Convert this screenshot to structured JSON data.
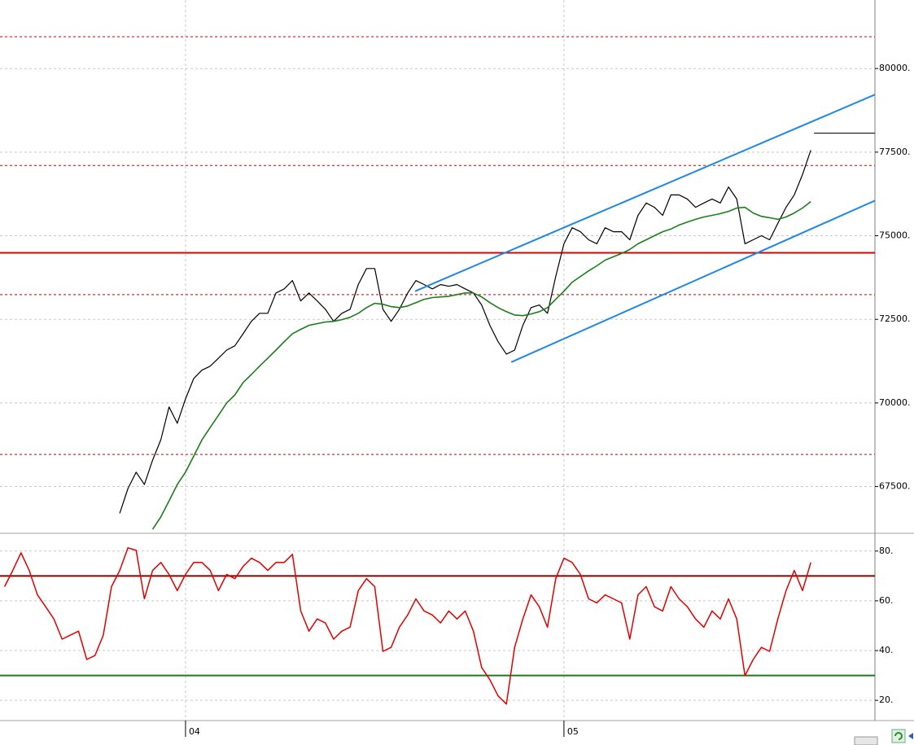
{
  "chart_data": [
    {
      "type": "line",
      "categories": [
        null,
        null,
        null,
        null,
        null,
        null,
        null,
        null,
        null,
        null,
        null,
        null,
        null,
        null,
        null,
        null,
        null,
        null,
        null,
        null,
        null,
        null,
        "04",
        null,
        null,
        null,
        null,
        null,
        null,
        null,
        null,
        null,
        null,
        null,
        null,
        null,
        null,
        null,
        null,
        null,
        null,
        null,
        null,
        null,
        null,
        null,
        null,
        null,
        null,
        null,
        null,
        null,
        null,
        null,
        null,
        null,
        null,
        null,
        null,
        null,
        null,
        null,
        null,
        null,
        null,
        null,
        null,
        null,
        "05",
        null,
        null,
        null,
        null,
        null,
        null,
        null,
        null,
        null,
        null,
        null,
        null,
        null,
        null,
        null,
        null,
        null,
        null,
        null,
        null,
        null,
        null,
        null,
        null,
        null,
        null,
        null,
        null,
        null,
        null
      ],
      "xlim": [
        -0.55,
        105.8
      ],
      "ylim": [
        66150,
        82050
      ],
      "yticks": [
        {
          "value": 67500,
          "label": "67500."
        },
        {
          "value": 70000,
          "label": "70000."
        },
        {
          "value": 72500,
          "label": "72500."
        },
        {
          "value": 75000,
          "label": "75000."
        },
        {
          "value": 77500,
          "label": "77500."
        },
        {
          "value": 80000,
          "label": "80000."
        }
      ],
      "grid": true,
      "series": [
        {
          "color": "#000000",
          "width": 1.2,
          "values": [
            null,
            null,
            null,
            null,
            null,
            null,
            null,
            null,
            null,
            null,
            null,
            null,
            null,
            null,
            66700,
            67440,
            67930,
            67560,
            68290,
            68900,
            69880,
            69390,
            70120,
            70730,
            70980,
            71100,
            71340,
            71580,
            71710,
            72070,
            72440,
            72680,
            72680,
            73290,
            73410,
            73660,
            73050,
            73290,
            73050,
            72800,
            72440,
            72680,
            72800,
            73540,
            74020,
            74020,
            72800,
            72440,
            72800,
            73290,
            73660,
            73540,
            73410,
            73540,
            73490,
            73540,
            73410,
            73290,
            72930,
            72320,
            71830,
            71460,
            71580,
            72320,
            72850,
            72930,
            72680,
            73780,
            74760,
            75240,
            75120,
            74880,
            74760,
            75240,
            75120,
            75120,
            74880,
            75610,
            75980,
            75850,
            75610,
            76220,
            76220,
            76100,
            75850,
            75980,
            76100,
            75980,
            76460,
            76100,
            74760,
            74880,
            75000,
            74880,
            75370,
            75850,
            76220,
            76830,
            77560
          ]
        },
        {
          "color": "#1a7f1a",
          "width": 1.6,
          "values": [
            null,
            null,
            null,
            null,
            null,
            null,
            null,
            null,
            null,
            null,
            null,
            null,
            null,
            null,
            null,
            null,
            null,
            null,
            66220,
            66590,
            67070,
            67560,
            67930,
            68410,
            68900,
            69270,
            69630,
            70000,
            70240,
            70610,
            70850,
            71100,
            71340,
            71580,
            71830,
            72070,
            72200,
            72320,
            72370,
            72420,
            72440,
            72490,
            72560,
            72680,
            72850,
            72980,
            72950,
            72880,
            72850,
            72900,
            73000,
            73100,
            73150,
            73170,
            73190,
            73240,
            73290,
            73290,
            73170,
            73000,
            72850,
            72730,
            72630,
            72610,
            72660,
            72730,
            72850,
            73100,
            73340,
            73610,
            73780,
            73950,
            74100,
            74270,
            74370,
            74470,
            74590,
            74760,
            74880,
            75000,
            75120,
            75200,
            75320,
            75410,
            75490,
            75560,
            75610,
            75660,
            75730,
            75830,
            75850,
            75680,
            75580,
            75540,
            75490,
            75560,
            75680,
            75830,
            76020
          ]
        }
      ],
      "levels": [
        {
          "value": 80950,
          "color": "#cc0000",
          "style": "dashed"
        },
        {
          "value": 77100,
          "color": "#cc0000",
          "style": "dashed"
        },
        {
          "value": 74490,
          "color": "#dd0000",
          "style": "solid"
        },
        {
          "value": 73240,
          "color": "#cc0000",
          "style": "dashed"
        },
        {
          "value": 68460,
          "color": "#cc0000",
          "style": "dashed"
        }
      ],
      "trend_lines": [
        {
          "color": "#1e88e5",
          "x": [
            49.9,
            105.8
          ],
          "y": [
            73340,
            79220
          ]
        },
        {
          "color": "#1e88e5",
          "x": [
            61.6,
            105.8
          ],
          "y": [
            71220,
            76050
          ]
        },
        {
          "color": "#000000",
          "x": [
            98.4,
            105.8
          ],
          "y": [
            78070,
            78070
          ]
        }
      ]
    },
    {
      "type": "line",
      "ylim": [
        12.2,
        86.8
      ],
      "yticks": [
        {
          "value": 20,
          "label": "20."
        },
        {
          "value": 40,
          "label": "40."
        },
        {
          "value": 60,
          "label": "60."
        },
        {
          "value": 80,
          "label": "80."
        }
      ],
      "grid": true,
      "series": [
        {
          "color": "#e00000",
          "width": 1.5,
          "values": [
            65.7,
            72.2,
            79.3,
            72.2,
            62.4,
            57.6,
            52.7,
            44.6,
            46.2,
            47.8,
            36.4,
            38,
            46.2,
            65.7,
            72.2,
            81.3,
            80.3,
            60.8,
            72.2,
            75.4,
            70.6,
            64.1,
            70.6,
            75.4,
            75.4,
            72.2,
            64.1,
            70.6,
            68.9,
            73.8,
            77.1,
            75.4,
            72.2,
            75.4,
            75.4,
            78.7,
            55.9,
            47.8,
            52.7,
            51.1,
            44.6,
            47.8,
            49.4,
            64.1,
            68.9,
            65.7,
            39.7,
            41.3,
            49.4,
            54.3,
            60.8,
            55.9,
            54.3,
            51.1,
            55.9,
            52.7,
            55.9,
            47.8,
            33.2,
            28.3,
            21.8,
            18.5,
            41.3,
            52.7,
            62.4,
            57.6,
            49.4,
            68.9,
            77.1,
            75.4,
            70.6,
            60.8,
            59.2,
            62.4,
            60.8,
            59.2,
            44.6,
            62.4,
            65.7,
            57.6,
            55.9,
            65.7,
            60.8,
            57.6,
            52.7,
            49.4,
            55.9,
            52.7,
            60.8,
            52.7,
            29.9,
            36.4,
            41.3,
            39.7,
            52.7,
            64.1,
            72.2,
            64.1,
            75.4
          ]
        }
      ],
      "levels": [
        {
          "value": 70,
          "color": "#8b0000",
          "style": "solid"
        },
        {
          "value": 30,
          "color": "#1f7a1f",
          "style": "solid"
        }
      ]
    }
  ]
}
